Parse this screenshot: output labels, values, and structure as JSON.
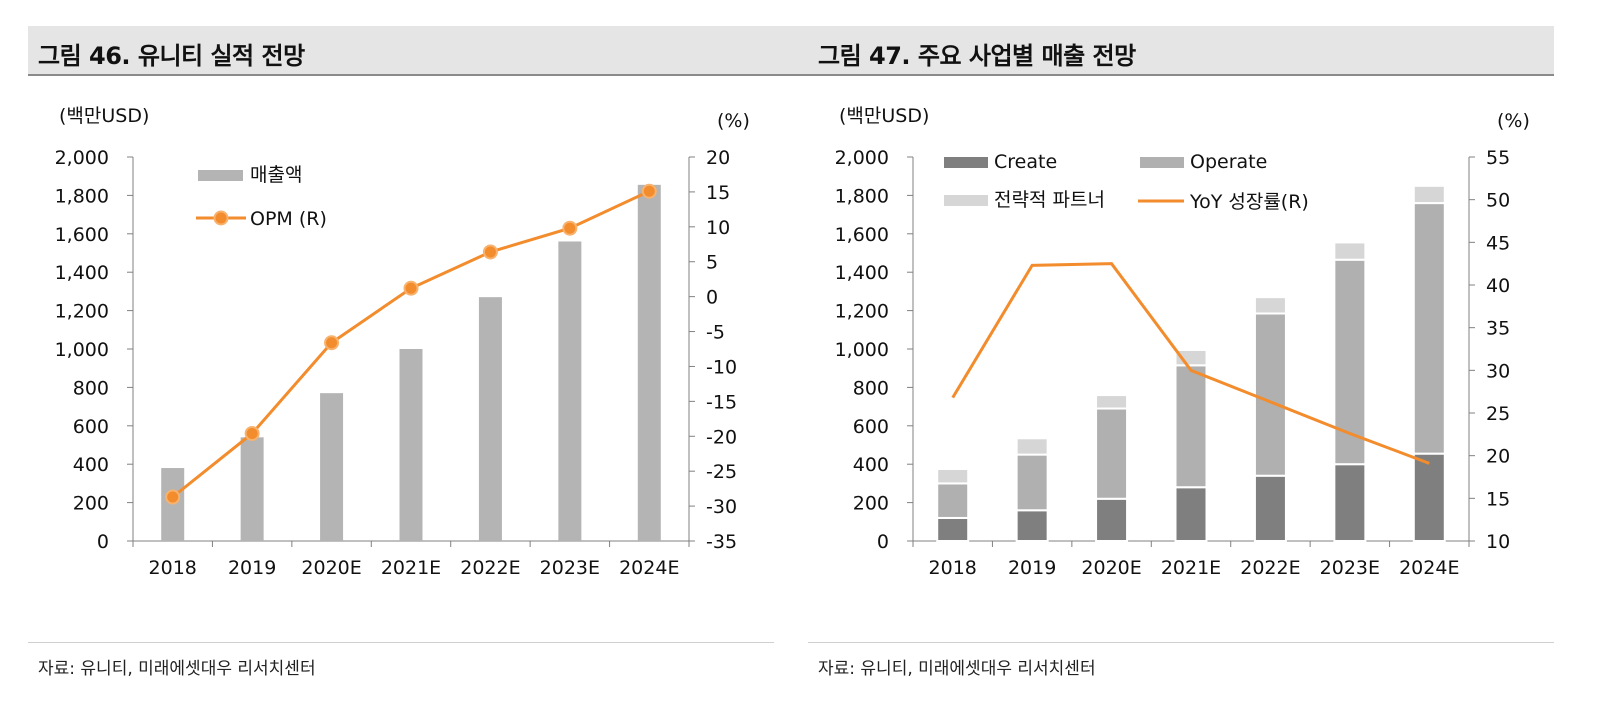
{
  "left": {
    "title": "그림 46. 유니티 실적 전망",
    "source": "자료: 유니티, 미래에셋대우 리서치센터"
  },
  "right": {
    "title": "그림 47. 주요 사업별 매출 전망",
    "source": "자료: 유니티, 미래에셋대우 리서치센터"
  },
  "colors": {
    "bar_gray": "#b4b4b4",
    "line_orange": "#f28c2c",
    "create": "#7f7f7f",
    "operate": "#b0b0b0",
    "partner": "#d6d6d6"
  },
  "chart_data": [
    {
      "type": "bar",
      "title": "",
      "ylabel": "(백만USD)",
      "y2label": "(%)",
      "categories": [
        "2018",
        "2019",
        "2020E",
        "2021E",
        "2022E",
        "2023E",
        "2024E"
      ],
      "ylim": [
        0,
        2000
      ],
      "yticks": [
        "2,000",
        "1,800",
        "1,600",
        "1,400",
        "1,200",
        "1,000",
        "800",
        "600",
        "400",
        "200",
        "0"
      ],
      "y2lim": [
        -35,
        20
      ],
      "y2ticks": [
        "20",
        "15",
        "10",
        "5",
        "0",
        "-5",
        "-10",
        "-15",
        "-20",
        "-25",
        "-30",
        "-35"
      ],
      "series": [
        {
          "name": "매출액",
          "kind": "bar",
          "axis": "left",
          "values": [
            380,
            540,
            770,
            1000,
            1270,
            1560,
            1855
          ]
        },
        {
          "name": "OPM (R)",
          "kind": "line",
          "axis": "right",
          "values": [
            -28.7,
            -19.6,
            -6.6,
            1.2,
            6.4,
            9.8,
            15.1
          ]
        }
      ],
      "legend": [
        "매출액",
        "OPM (R)"
      ],
      "legend_position": "top-left",
      "grid": false
    },
    {
      "type": "bar",
      "stacked": true,
      "title": "",
      "ylabel": "(백만USD)",
      "y2label": "(%)",
      "categories": [
        "2018",
        "2019",
        "2020E",
        "2021E",
        "2022E",
        "2023E",
        "2024E"
      ],
      "ylim": [
        0,
        2000
      ],
      "yticks": [
        "2,000",
        "1,800",
        "1,600",
        "1,400",
        "1,200",
        "1,000",
        "800",
        "600",
        "400",
        "200",
        "0"
      ],
      "y2lim": [
        10,
        55
      ],
      "y2ticks": [
        "55",
        "50",
        "45",
        "40",
        "35",
        "30",
        "25",
        "20",
        "15",
        "10"
      ],
      "series": [
        {
          "name": "Create",
          "kind": "bar",
          "axis": "left",
          "values": [
            120,
            160,
            220,
            280,
            340,
            400,
            455
          ]
        },
        {
          "name": "Operate",
          "kind": "bar",
          "axis": "left",
          "values": [
            180,
            290,
            470,
            635,
            845,
            1065,
            1305
          ]
        },
        {
          "name": "전략적 파트너",
          "kind": "bar",
          "axis": "left",
          "values": [
            75,
            85,
            70,
            80,
            85,
            90,
            90
          ]
        },
        {
          "name": "YoY 성장률(R)",
          "kind": "line",
          "axis": "right",
          "values": [
            26.8,
            42.3,
            42.5,
            30.0,
            26.3,
            22.6,
            19.1
          ]
        }
      ],
      "legend": [
        "Create",
        "Operate",
        "전략적 파트너",
        "YoY 성장률(R)"
      ],
      "legend_position": "top",
      "grid": false
    }
  ]
}
